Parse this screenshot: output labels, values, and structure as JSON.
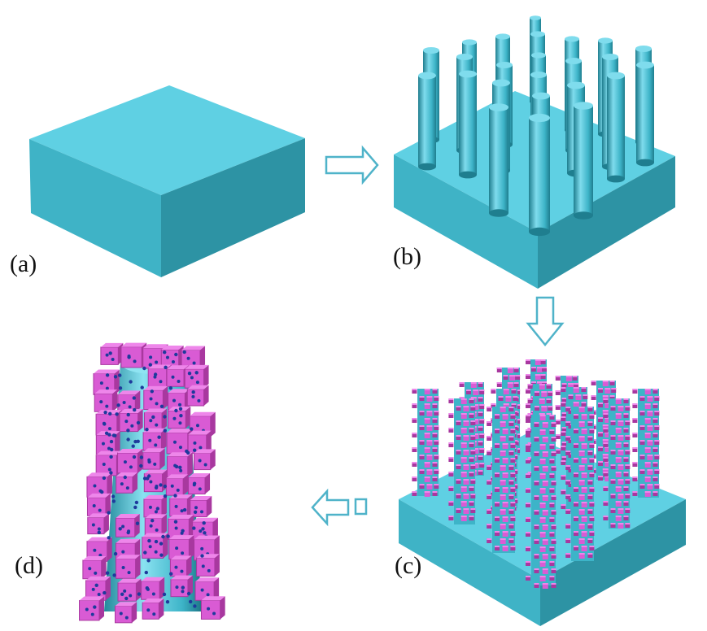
{
  "labels": {
    "a": "(a)",
    "b": "(b)",
    "c": "(c)",
    "d": "(d)"
  },
  "colors": {
    "substrate_top": "#5fd0e3",
    "substrate_front": "#3fb3c6",
    "substrate_side": "#2d8fa0",
    "rod_light": "#7fdced",
    "rod_mid": "#3db4c8",
    "rod_dark": "#1f7e8f",
    "cube": "#d95bd4",
    "cube_top": "#ee86ea",
    "cube_side": "#a8389f",
    "particle": "#1e3a9c",
    "arrow": "#4fb3c9"
  },
  "icons": [
    "right-arrow-icon",
    "down-arrow-icon",
    "left-arrow-icon"
  ]
}
